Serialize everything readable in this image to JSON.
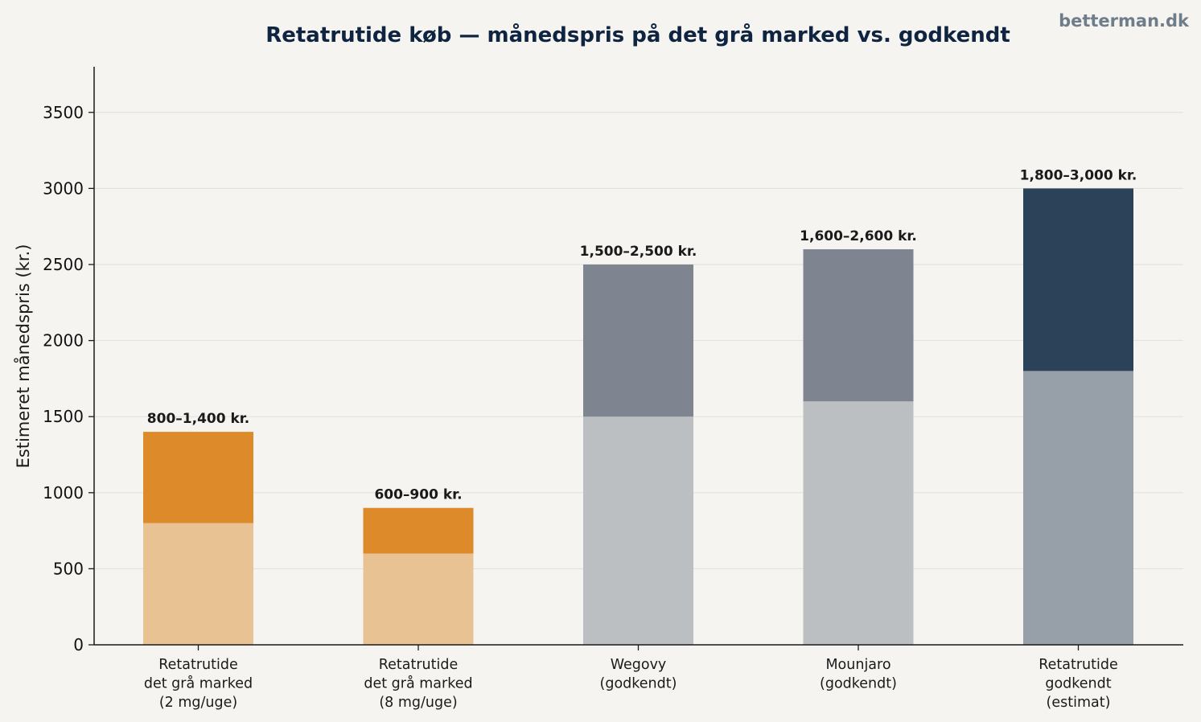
{
  "watermark": "betterman.dk",
  "chart_data": {
    "type": "bar",
    "title": "Retatrutide køb — månedspris på det grå marked vs. godkendt",
    "xlabel": "",
    "ylabel": "Estimeret månedspris (kr.)",
    "ylim": [
      0,
      3800
    ],
    "yticks": [
      0,
      500,
      1000,
      1500,
      2000,
      2500,
      3000,
      3500
    ],
    "grid": "horizontal",
    "categories": [
      [
        "Retatrutide",
        "det grå marked",
        "(2 mg/uge)"
      ],
      [
        "Retatrutide",
        "det grå marked",
        "(8 mg/uge)"
      ],
      [
        "Wegovy",
        "(godkendt)"
      ],
      [
        "Mounjaro",
        "(godkendt)"
      ],
      [
        "Retatrutide",
        "godkendt",
        "(estimat)"
      ]
    ],
    "ranges": [
      {
        "low": 800,
        "high": 1400,
        "label": "800–1,400 kr.",
        "color_low": "#e8c293",
        "color_high": "#dd8a2b"
      },
      {
        "low": 600,
        "high": 900,
        "label": "600–900 kr.",
        "color_low": "#e8c293",
        "color_high": "#dd8a2b"
      },
      {
        "low": 1500,
        "high": 2500,
        "label": "1,500–2,500 kr.",
        "color_low": "#bcbfc2",
        "color_high": "#7e8490"
      },
      {
        "low": 1600,
        "high": 2600,
        "label": "1,600–2,600 kr.",
        "color_low": "#bcbfc2",
        "color_high": "#7e8490"
      },
      {
        "low": 1800,
        "high": 3000,
        "label": "1,800–3,000 kr.",
        "color_low": "#97a0a8",
        "color_high": "#2c4259"
      }
    ]
  }
}
